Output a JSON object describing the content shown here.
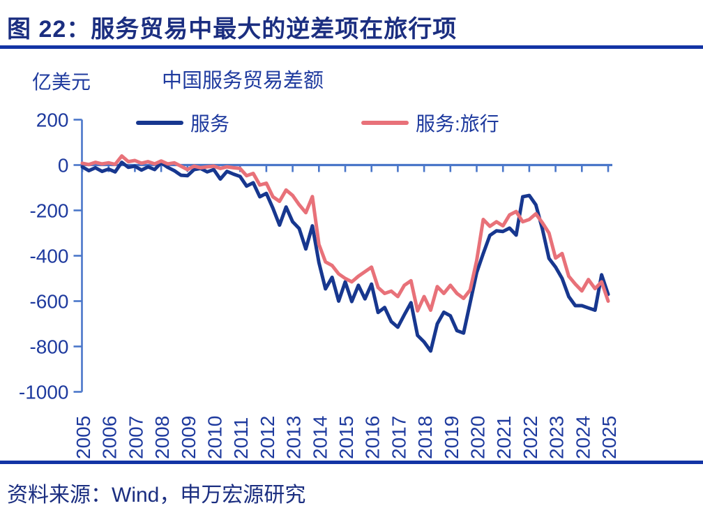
{
  "header": {
    "title": "图 22：服务贸易中最大的逆差项在旅行项"
  },
  "footer": {
    "source": "资料来源：Wind，申万宏源研究"
  },
  "colors": {
    "title_navy": "#1b2e80",
    "rule_blue": "#1334a5",
    "chart_text": "#1e3a9e",
    "axis": "#4a76c9"
  },
  "chart_data": {
    "type": "line",
    "title": "中国服务贸易差额",
    "unit_label": "亿美元",
    "frequency": "quarterly",
    "x_start": 2005,
    "x_step": 0.25,
    "x_tick_years": [
      2005,
      2006,
      2007,
      2008,
      2009,
      2010,
      2011,
      2012,
      2013,
      2014,
      2015,
      2016,
      2017,
      2018,
      2019,
      2020,
      2021,
      2022,
      2023,
      2024,
      2025
    ],
    "ylim": [
      -1000,
      200
    ],
    "y_ticks": [
      200,
      0,
      -200,
      -400,
      -600,
      -800,
      -1000
    ],
    "grid": false,
    "legend_position": "top",
    "series": [
      {
        "name": "服务",
        "color": "#17378f",
        "values": [
          -8,
          -25,
          -12,
          -28,
          -18,
          -30,
          12,
          -10,
          -5,
          -22,
          -8,
          -20,
          10,
          -10,
          -25,
          -45,
          -47,
          -20,
          -15,
          -30,
          -20,
          -62,
          -28,
          -40,
          -50,
          -93,
          -78,
          -140,
          -125,
          -190,
          -265,
          -185,
          -250,
          -280,
          -370,
          -268,
          -430,
          -546,
          -495,
          -600,
          -515,
          -602,
          -530,
          -590,
          -525,
          -650,
          -628,
          -690,
          -715,
          -660,
          -607,
          -751,
          -780,
          -820,
          -700,
          -649,
          -665,
          -730,
          -741,
          -607,
          -474,
          -390,
          -310,
          -290,
          -293,
          -278,
          -309,
          -140,
          -134,
          -175,
          -283,
          -412,
          -450,
          -500,
          -580,
          -620,
          -620,
          -630,
          -640,
          -484,
          -570
        ]
      },
      {
        "name": "服务:旅行",
        "color": "#e87179",
        "values": [
          8,
          2,
          12,
          5,
          10,
          3,
          40,
          15,
          20,
          8,
          15,
          5,
          18,
          5,
          10,
          -5,
          -20,
          -5,
          -12,
          -8,
          -5,
          -15,
          -8,
          -12,
          -15,
          -47,
          -37,
          -88,
          -80,
          -140,
          -160,
          -110,
          -134,
          -175,
          -210,
          -139,
          -350,
          -427,
          -443,
          -480,
          -500,
          -515,
          -490,
          -470,
          -450,
          -540,
          -566,
          -556,
          -580,
          -530,
          -510,
          -643,
          -580,
          -640,
          -536,
          -566,
          -530,
          -566,
          -588,
          -551,
          -421,
          -240,
          -270,
          -250,
          -268,
          -220,
          -205,
          -250,
          -240,
          -215,
          -255,
          -300,
          -410,
          -390,
          -490,
          -525,
          -555,
          -505,
          -545,
          -515,
          -600
        ]
      }
    ]
  }
}
